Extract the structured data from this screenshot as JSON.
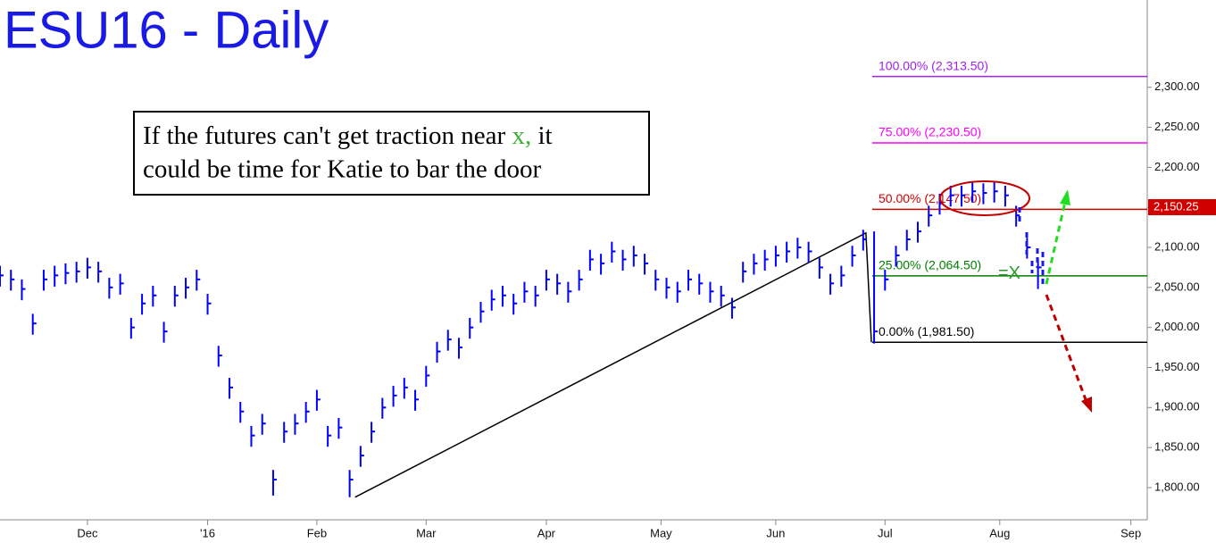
{
  "chart_data": {
    "type": "ohlc",
    "title": "ESU16 - Daily",
    "x": [
      0,
      2,
      4,
      6,
      8,
      10,
      12,
      14,
      16,
      18,
      20,
      22,
      24,
      26,
      28,
      30,
      32,
      34,
      36,
      38,
      40,
      42,
      44,
      46,
      48,
      50,
      52,
      54,
      56,
      58,
      60,
      62,
      64,
      66,
      68,
      70,
      72,
      74,
      76,
      78,
      80,
      82,
      84,
      86,
      88,
      90,
      92,
      94,
      96,
      98,
      100,
      102,
      104,
      106,
      108,
      110,
      112,
      114,
      116,
      118,
      120,
      122,
      124,
      126,
      128,
      130,
      132,
      134,
      136,
      138,
      140,
      142,
      144,
      146,
      148,
      150,
      152,
      154,
      156,
      158,
      160,
      162,
      164,
      166,
      168,
      170,
      172,
      174,
      176,
      178,
      180,
      182,
      184,
      186,
      188,
      190
    ],
    "high": [
      2077,
      2072,
      2060,
      2017,
      2072,
      2077,
      2080,
      2082,
      2087,
      2082,
      2062,
      2067,
      2012,
      2042,
      2052,
      2007,
      2052,
      2062,
      2072,
      2042,
      1977,
      1937,
      1907,
      1877,
      1892,
      1822,
      1882,
      1892,
      1907,
      1922,
      1877,
      1887,
      1822,
      1852,
      1882,
      1912,
      1927,
      1937,
      1922,
      1952,
      1982,
      1997,
      1987,
      2012,
      2032,
      2047,
      2052,
      2042,
      2057,
      2052,
      2072,
      2067,
      2057,
      2072,
      2097,
      2092,
      2107,
      2097,
      2102,
      2092,
      2072,
      2062,
      2057,
      2072,
      2067,
      2057,
      2052,
      2037,
      2082,
      2092,
      2097,
      2102,
      2107,
      2112,
      2107,
      2087,
      2067,
      2077,
      2102,
      2122,
      2120,
      2072,
      2102,
      2122,
      2132,
      2152,
      2167,
      2177,
      2177,
      2182,
      2180,
      2182,
      2177,
      2152,
      2112,
      2087
    ],
    "low": [
      2051,
      2046,
      2034,
      1991,
      2046,
      2051,
      2054,
      2056,
      2061,
      2056,
      2036,
      2041,
      1986,
      2016,
      2026,
      1981,
      2026,
      2036,
      2046,
      2016,
      1951,
      1911,
      1881,
      1851,
      1866,
      1790,
      1856,
      1866,
      1881,
      1896,
      1851,
      1861,
      1788,
      1826,
      1856,
      1886,
      1901,
      1911,
      1896,
      1926,
      1956,
      1971,
      1961,
      1986,
      2006,
      2021,
      2026,
      2016,
      2031,
      2026,
      2046,
      2041,
      2031,
      2046,
      2071,
      2066,
      2081,
      2071,
      2076,
      2066,
      2046,
      2036,
      2031,
      2046,
      2041,
      2031,
      2026,
      2011,
      2056,
      2066,
      2071,
      2076,
      2081,
      2086,
      2081,
      2061,
      2041,
      2051,
      2076,
      2096,
      1980,
      2046,
      2076,
      2096,
      2106,
      2126,
      2141,
      2151,
      2151,
      2156,
      2154,
      2156,
      2151,
      2126,
      2086,
      2048
    ],
    "close": [
      2065,
      2060,
      2048,
      2005,
      2060,
      2065,
      2068,
      2070,
      2075,
      2070,
      2050,
      2055,
      2000,
      2030,
      2040,
      1995,
      2040,
      2050,
      2060,
      2030,
      1965,
      1925,
      1895,
      1865,
      1880,
      1810,
      1870,
      1880,
      1895,
      1910,
      1865,
      1875,
      1810,
      1840,
      1870,
      1900,
      1915,
      1925,
      1910,
      1940,
      1970,
      1985,
      1975,
      2000,
      2020,
      2035,
      2040,
      2030,
      2045,
      2040,
      2060,
      2055,
      2045,
      2060,
      2085,
      2080,
      2095,
      2085,
      2090,
      2080,
      2060,
      2050,
      2045,
      2060,
      2055,
      2045,
      2040,
      2025,
      2070,
      2080,
      2085,
      2090,
      2095,
      2100,
      2095,
      2075,
      2055,
      2065,
      2090,
      2110,
      1995,
      2060,
      2090,
      2110,
      2120,
      2140,
      2155,
      2165,
      2165,
      2170,
      2168,
      2170,
      2165,
      2140,
      2100,
      2075
    ],
    "color": "#0000ff",
    "xlim": [
      0,
      210
    ],
    "xticks": [
      {
        "value": 16,
        "label": "Dec"
      },
      {
        "value": 38,
        "label": "'16"
      },
      {
        "value": 58,
        "label": "Feb"
      },
      {
        "value": 78,
        "label": "Mar"
      },
      {
        "value": 100,
        "label": "Apr"
      },
      {
        "value": 121,
        "label": "May"
      },
      {
        "value": 142,
        "label": "Jun"
      },
      {
        "value": 162,
        "label": "Jul"
      },
      {
        "value": 183,
        "label": "Aug"
      },
      {
        "value": 207,
        "label": "Sep"
      }
    ],
    "ylim": [
      1762,
      2409
    ],
    "yticks": [
      {
        "value": 1800,
        "label": "1,800.00"
      },
      {
        "value": 1850,
        "label": "1,850.00"
      },
      {
        "value": 1900,
        "label": "1,900.00"
      },
      {
        "value": 1950,
        "label": "1,950.00"
      },
      {
        "value": 2000,
        "label": "2,000.00"
      },
      {
        "value": 2050,
        "label": "2,050.00"
      },
      {
        "value": 2100,
        "label": "2,100.00"
      },
      {
        "value": 2150,
        "label": "2,150.00"
      },
      {
        "value": 2200,
        "label": "2,200.00"
      },
      {
        "value": 2250,
        "label": "2,250.00"
      },
      {
        "value": 2300,
        "label": "2,300.00"
      }
    ],
    "last_price": {
      "value": 2150.25,
      "label": "2,150.25"
    },
    "fib_levels": [
      {
        "value": 2313.5,
        "label": "100.00% (2,313.50)",
        "color": "#a020f0"
      },
      {
        "value": 2230.5,
        "label": "75.00% (2,230.50)",
        "color": "#ff00ff"
      },
      {
        "value": 2147.5,
        "label": "50.00% (2,147.50)",
        "color": "#d00000"
      },
      {
        "value": 2064.5,
        "label": "25.00% (2,064.50)",
        "color": "#008000"
      },
      {
        "value": 1981.5,
        "label": "0.00% (1,981.50)",
        "color": "#000000"
      }
    ],
    "trend_line": {
      "x": [
        65,
        158.5,
        159.5
      ],
      "y": [
        1788,
        2118,
        1981.5
      ]
    },
    "target_marker": "=X",
    "note": {
      "line1_start": "If the futures can't get traction near",
      "line1_mark": "x,",
      "line1_end": "it",
      "line2": "could be time for Katie to bar the door"
    }
  }
}
